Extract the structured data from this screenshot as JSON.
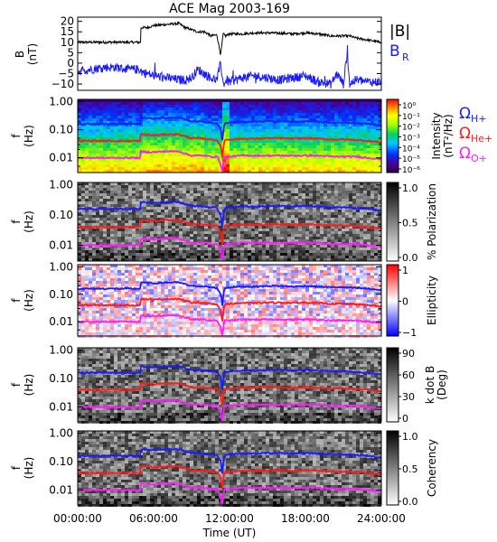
{
  "title": "ACE Mag 2003-169",
  "colors": {
    "btotal": "#000000",
    "br": "#1a1aff",
    "h_plus": "#1a1aff",
    "he_plus": "#ff1a1a",
    "o_plus": "#ff1aff"
  },
  "legend": {
    "btotal": "|B|",
    "br": "B",
    "br_sub": "R",
    "omega": "Ω",
    "h_sub": "H+",
    "he_sub": "He+",
    "o_sub": "O+"
  },
  "chart_data": [
    {
      "type": "line",
      "ylabel": "B",
      "yunit": "(nT)",
      "ylim": [
        -13,
        22
      ],
      "yticks": [
        -10,
        -5,
        0,
        5,
        10,
        15,
        20
      ],
      "series": [
        {
          "name": "|B|",
          "x_hours": [
            0,
            1,
            2,
            3,
            4,
            4.99,
            5.0,
            5.5,
            6,
            7,
            8,
            8.5,
            9,
            9.5,
            10,
            10.3,
            10.5,
            11,
            11.3,
            11.5,
            11.7,
            12,
            13,
            14,
            15,
            16,
            17,
            18,
            19,
            20,
            20.5,
            21,
            21.5,
            22,
            23,
            24
          ],
          "values": [
            10,
            10,
            10,
            10,
            10,
            10,
            17,
            17,
            18,
            18.5,
            19,
            17,
            16,
            15,
            15,
            14,
            13,
            13.5,
            4,
            14,
            13,
            14,
            14,
            14.5,
            14.5,
            14.3,
            14,
            14.5,
            14,
            13,
            13,
            13,
            13,
            12,
            11,
            10
          ]
        },
        {
          "name": "BR",
          "x_hours": [
            0,
            1,
            2,
            3,
            4,
            4.99,
            5.0,
            5.5,
            6,
            7,
            8,
            8.5,
            9,
            9.5,
            10,
            10.5,
            11,
            11.3,
            11.5,
            11.8,
            12,
            13,
            14,
            15,
            16,
            17,
            18,
            19,
            20,
            20.5,
            21,
            21.3,
            21.5,
            22,
            23,
            24
          ],
          "values": [
            -4,
            -3,
            -2,
            -2,
            -3,
            -3,
            -4,
            -5,
            -6,
            -7,
            -8,
            -8,
            -7,
            -3,
            -5,
            -7,
            -8,
            0,
            -10,
            -8,
            -9,
            -7,
            -6,
            -7,
            -8,
            -7,
            -6,
            -9,
            -10,
            -5,
            -10,
            5,
            -10,
            -8,
            -9,
            -9
          ]
        }
      ]
    },
    {
      "type": "heatmap",
      "ylabel": "f",
      "yunit": "(Hz)",
      "yscale": "log",
      "yticks": [
        "1.00",
        "0.10",
        "0.01"
      ],
      "colorbar": {
        "label": "Intensity",
        "unit": "(nT²/Hz)",
        "ticks": [
          "10⁰",
          "10⁻¹",
          "10⁻²",
          "10⁻³",
          "10⁻⁴",
          "10⁻⁵",
          "10⁻⁶"
        ],
        "scale": "rainbow"
      }
    },
    {
      "type": "heatmap",
      "ylabel": "f",
      "yunit": "(Hz)",
      "yscale": "log",
      "yticks": [
        "1.00",
        "0.10",
        "0.01"
      ],
      "colorbar": {
        "label": "% Polarization",
        "unit": "",
        "ticks": [
          "1.0",
          "0.5",
          "0.0"
        ],
        "scale": "gray"
      }
    },
    {
      "type": "heatmap",
      "ylabel": "f",
      "yunit": "(Hz)",
      "yscale": "log",
      "yticks": [
        "1.00",
        "0.10",
        "0.01"
      ],
      "colorbar": {
        "label": "Ellipticity",
        "unit": "",
        "ticks": [
          "1",
          "0",
          "−1"
        ],
        "scale": "bwr"
      }
    },
    {
      "type": "heatmap",
      "ylabel": "f",
      "yunit": "(Hz)",
      "yscale": "log",
      "yticks": [
        "1.00",
        "0.10",
        "0.01"
      ],
      "colorbar": {
        "label": "k dot B",
        "unit": "(Deg)",
        "ticks": [
          "90",
          "60",
          "30",
          "0"
        ],
        "scale": "gray"
      }
    },
    {
      "type": "heatmap",
      "ylabel": "f",
      "yunit": "(Hz)",
      "yscale": "log",
      "yticks": [
        "1.00",
        "0.10",
        "0.01"
      ],
      "colorbar": {
        "label": "Coherency",
        "unit": "",
        "ticks": [
          "1.0",
          "0.5",
          "0.0"
        ],
        "scale": "gray"
      }
    }
  ],
  "gyro_lines": {
    "x_hours": [
      0,
      1,
      2,
      3,
      4,
      4.99,
      5.0,
      5.5,
      6,
      7,
      8,
      8.5,
      9,
      9.5,
      10,
      10.5,
      11,
      11.3,
      11.45,
      11.6,
      12,
      13,
      14,
      15,
      16,
      17,
      18,
      19,
      20,
      21,
      22,
      23,
      24
    ],
    "h_plus_hz": [
      0.16,
      0.16,
      0.16,
      0.16,
      0.16,
      0.16,
      0.27,
      0.26,
      0.25,
      0.27,
      0.27,
      0.23,
      0.2,
      0.2,
      0.19,
      0.18,
      0.17,
      0.1,
      0.03,
      0.17,
      0.18,
      0.19,
      0.19,
      0.2,
      0.2,
      0.19,
      0.2,
      0.19,
      0.18,
      0.18,
      0.17,
      0.16,
      0.14
    ],
    "he_plus_hz": [
      0.04,
      0.04,
      0.04,
      0.04,
      0.04,
      0.04,
      0.068,
      0.066,
      0.063,
      0.068,
      0.068,
      0.058,
      0.05,
      0.05,
      0.048,
      0.045,
      0.043,
      0.025,
      0.008,
      0.043,
      0.045,
      0.048,
      0.048,
      0.05,
      0.05,
      0.048,
      0.05,
      0.048,
      0.045,
      0.045,
      0.043,
      0.04,
      0.035
    ],
    "o_plus_hz": [
      0.01,
      0.01,
      0.01,
      0.01,
      0.01,
      0.01,
      0.017,
      0.016,
      0.016,
      0.017,
      0.017,
      0.014,
      0.012,
      0.012,
      0.012,
      0.011,
      0.011,
      0.006,
      0.002,
      0.011,
      0.011,
      0.012,
      0.012,
      0.012,
      0.012,
      0.012,
      0.012,
      0.012,
      0.011,
      0.011,
      0.011,
      0.01,
      0.009
    ]
  },
  "x_axis": {
    "label": "Time (UT)",
    "range_hours": [
      0,
      24
    ],
    "ticks": [
      "00:00:00",
      "06:00:00",
      "12:00:00",
      "18:00:00",
      "24:00:00"
    ]
  }
}
